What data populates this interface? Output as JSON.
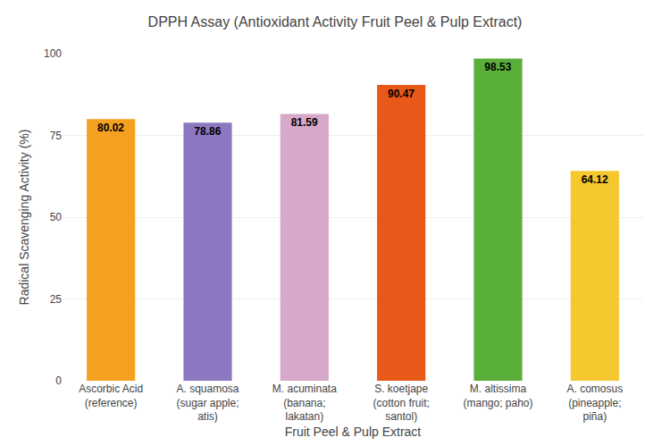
{
  "chart_data": {
    "type": "bar",
    "title": "DPPH Assay (Antioxidant Activity Fruit Peel & Pulp Extract)",
    "xlabel": "Fruit Peel & Pulp Extract",
    "ylabel": "Radical Scavenging Activity (%)",
    "categories": [
      "Ascorbic Acid\n(reference)",
      "A. squamosa\n(sugar apple;\natis)",
      "M. acuminata\n(banana;\nlakatan)",
      "S. koetjape\n(cotton fruit;\nsantol)",
      "M. altissima\n(mango; paho)",
      "A. comosus\n(pineapple;\npiña)"
    ],
    "values": [
      80.02,
      78.86,
      81.59,
      90.47,
      98.53,
      64.12
    ],
    "colors": [
      "#F5A020",
      "#8B78C0",
      "#D8A8C8",
      "#E85818",
      "#5AAE3A",
      "#F5C830"
    ],
    "ylim": [
      0,
      100
    ],
    "yticks": [
      0,
      25,
      50,
      75,
      100
    ],
    "grid": true,
    "data_labels": true
  }
}
